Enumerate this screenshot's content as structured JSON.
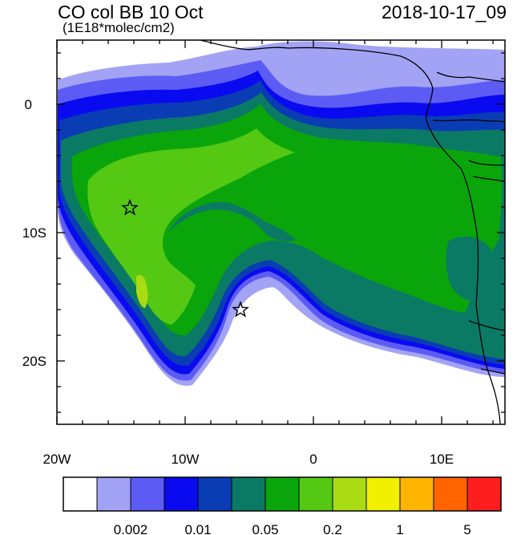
{
  "header": {
    "title": "CO col BB 10 Oct",
    "units": "(1E18*molec/cm2)",
    "timestamp": "2018-10-17_09"
  },
  "map": {
    "x_ticks": [
      "20W",
      "10W",
      "0",
      "10E"
    ],
    "y_ticks": [
      "0",
      "10S",
      "20S"
    ],
    "markers": [
      {
        "name": "star-marker",
        "lon": -14.2,
        "lat": -8.0
      },
      {
        "name": "star-marker",
        "lon": -5.7,
        "lat": -16.0
      }
    ]
  },
  "colorbar": {
    "colors": [
      "#ffffff",
      "#a3a3f5",
      "#5c5cf5",
      "#0a0af0",
      "#0a3cb4",
      "#0b7a64",
      "#0aa50a",
      "#55c814",
      "#aadc14",
      "#f0f000",
      "#ffb400",
      "#ff6400",
      "#ff1e1e"
    ],
    "labels": [
      "0.002",
      "0.01",
      "0.05",
      "0.2",
      "1",
      "5"
    ]
  }
}
